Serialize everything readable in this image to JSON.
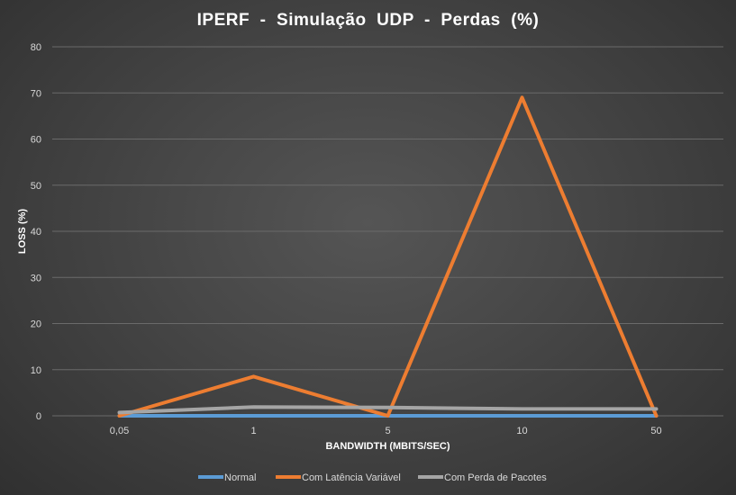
{
  "chart_data": {
    "type": "line",
    "title": "IPERF  -  Simulação  UDP  -  Perdas  (%)",
    "xlabel": "BANDWIDTH (MBITS/SEC)",
    "ylabel": "LOSS (%)",
    "categories": [
      "0,05",
      "1",
      "5",
      "10",
      "50"
    ],
    "ylim": [
      0,
      80
    ],
    "yticks": [
      0,
      10,
      20,
      30,
      40,
      50,
      60,
      70,
      80
    ],
    "grid": true,
    "legend_position": "bottom",
    "series": [
      {
        "name": "Normal",
        "color": "#5b9bd5",
        "values": [
          0,
          0,
          0,
          0,
          0
        ]
      },
      {
        "name": "Com Latência Variável",
        "color": "#ed7d31",
        "values": [
          0,
          8.5,
          0,
          69,
          0
        ]
      },
      {
        "name": "Com Perda de Pacotes",
        "color": "#a5a5a5",
        "values": [
          0.7,
          1.9,
          1.8,
          1.5,
          1.5
        ]
      }
    ]
  }
}
